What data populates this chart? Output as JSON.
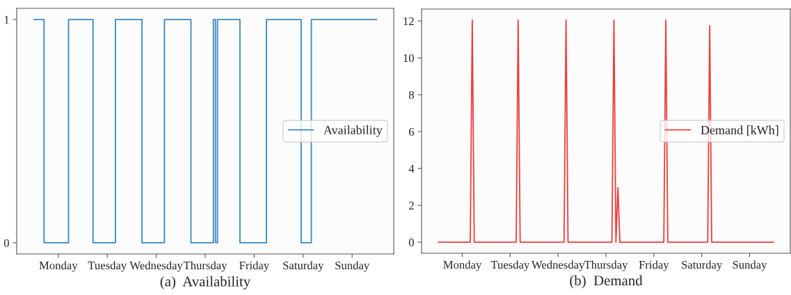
{
  "chart_data": [
    {
      "type": "step",
      "title": "(a)  Availability",
      "categories": [
        null,
        null,
        null,
        null,
        null,
        null,
        null,
        null,
        null,
        null,
        null,
        null,
        "Monday",
        null,
        null,
        null,
        null,
        null,
        null,
        null,
        null,
        null,
        null,
        null,
        null,
        null,
        null,
        null,
        null,
        null,
        null,
        null,
        null,
        null,
        null,
        null,
        "Tuesday",
        null,
        null,
        null,
        null,
        null,
        null,
        null,
        null,
        null,
        null,
        null,
        null,
        null,
        null,
        null,
        null,
        null,
        null,
        null,
        null,
        null,
        null,
        null,
        "Wednesday",
        null,
        null,
        null,
        null,
        null,
        null,
        null,
        null,
        null,
        null,
        null,
        null,
        null,
        null,
        null,
        null,
        null,
        null,
        null,
        null,
        null,
        null,
        null,
        "Thursday",
        null,
        null,
        null,
        null,
        null,
        null,
        null,
        null,
        null,
        null,
        null,
        null,
        null,
        null,
        null,
        null,
        null,
        null,
        null,
        null,
        null,
        null,
        null,
        "Friday",
        null,
        null,
        null,
        null,
        null,
        null,
        null,
        null,
        null,
        null,
        null,
        null,
        null,
        null,
        null,
        null,
        null,
        null,
        null,
        null,
        null,
        null,
        null,
        "Saturday",
        null,
        null,
        null,
        null,
        null,
        null,
        null,
        null,
        null,
        null,
        null,
        null,
        null,
        null,
        null,
        null,
        null,
        null,
        null,
        null,
        null,
        null,
        null,
        "Sunday",
        null,
        null,
        null,
        null,
        null,
        null,
        null,
        null,
        null,
        null,
        null,
        null
      ],
      "series": [
        {
          "name": "Availability",
          "color": "#3a87c0",
          "values": [
            1,
            1,
            1,
            1,
            1,
            0,
            0,
            0,
            0,
            0,
            0,
            0,
            0,
            0,
            0,
            0,
            0,
            1,
            1,
            1,
            1,
            1,
            1,
            1,
            1,
            1,
            1,
            1,
            1,
            0,
            0,
            0,
            0,
            0,
            0,
            0,
            0,
            0,
            0,
            0,
            1,
            1,
            1,
            1,
            1,
            1,
            1,
            1,
            1,
            1,
            1,
            1,
            1,
            0,
            0,
            0,
            0,
            0,
            0,
            0,
            0,
            0,
            0,
            0,
            1,
            1,
            1,
            1,
            1,
            1,
            1,
            1,
            1,
            1,
            1,
            1,
            1,
            0,
            0,
            0,
            0,
            0,
            0,
            0,
            0,
            0,
            0,
            0,
            1,
            0,
            1,
            1,
            1,
            1,
            1,
            1,
            1,
            1,
            1,
            1,
            1,
            0,
            0,
            0,
            0,
            0,
            0,
            0,
            0,
            0,
            0,
            0,
            0,
            0,
            1,
            1,
            1,
            1,
            1,
            1,
            1,
            1,
            1,
            1,
            1,
            1,
            1,
            1,
            1,
            1,
            1,
            0,
            0,
            0,
            0,
            0,
            1,
            1,
            1,
            1,
            1,
            1,
            1,
            1,
            1,
            1,
            1,
            1,
            1,
            1,
            1,
            1,
            1,
            1,
            1,
            1,
            1,
            1,
            1,
            1,
            1,
            1,
            1,
            1,
            1,
            1,
            1,
            1,
            1
          ]
        }
      ],
      "ylim": [
        -0.05,
        1.05
      ],
      "yticks": [
        0,
        1
      ],
      "grid": false,
      "legend": "center right"
    },
    {
      "type": "line",
      "title": "(b)  Demand",
      "categories": [
        null,
        null,
        null,
        null,
        null,
        null,
        null,
        null,
        null,
        null,
        null,
        null,
        "Monday",
        null,
        null,
        null,
        null,
        null,
        null,
        null,
        null,
        null,
        null,
        null,
        null,
        null,
        null,
        null,
        null,
        null,
        null,
        null,
        null,
        null,
        null,
        null,
        "Tuesday",
        null,
        null,
        null,
        null,
        null,
        null,
        null,
        null,
        null,
        null,
        null,
        null,
        null,
        null,
        null,
        null,
        null,
        null,
        null,
        null,
        null,
        null,
        null,
        "Wednesday",
        null,
        null,
        null,
        null,
        null,
        null,
        null,
        null,
        null,
        null,
        null,
        null,
        null,
        null,
        null,
        null,
        null,
        null,
        null,
        null,
        null,
        null,
        null,
        "Thursday",
        null,
        null,
        null,
        null,
        null,
        null,
        null,
        null,
        null,
        null,
        null,
        null,
        null,
        null,
        null,
        null,
        null,
        null,
        null,
        null,
        null,
        null,
        null,
        "Friday",
        null,
        null,
        null,
        null,
        null,
        null,
        null,
        null,
        null,
        null,
        null,
        null,
        null,
        null,
        null,
        null,
        null,
        null,
        null,
        null,
        null,
        null,
        null,
        "Saturday",
        null,
        null,
        null,
        null,
        null,
        null,
        null,
        null,
        null,
        null,
        null,
        null,
        null,
        null,
        null,
        null,
        null,
        null,
        null,
        null,
        null,
        null,
        null,
        "Sunday",
        null,
        null,
        null,
        null,
        null,
        null,
        null,
        null,
        null,
        null,
        null,
        null
      ],
      "series": [
        {
          "name": "Demand [kWh]",
          "color": "#f03c3c",
          "values": [
            0,
            0,
            0,
            0,
            0,
            0,
            0,
            0,
            0,
            0,
            0,
            0,
            0,
            0,
            0,
            0,
            0,
            12.05,
            0,
            0,
            0,
            0,
            0,
            0,
            0,
            0,
            0,
            0,
            0,
            0,
            0,
            0,
            0,
            0,
            0,
            0,
            0,
            0,
            0,
            0,
            12.05,
            0,
            0,
            0,
            0,
            0,
            0,
            0,
            0,
            0,
            0,
            0,
            0,
            0,
            0,
            0,
            0,
            0,
            0,
            0,
            0,
            0,
            0,
            0,
            12.05,
            0,
            0,
            0,
            0,
            0,
            0,
            0,
            0,
            0,
            0,
            0,
            0,
            0,
            0,
            0,
            0,
            0,
            0,
            0,
            0,
            0,
            0,
            0,
            12.05,
            0,
            2.95,
            0,
            0,
            0,
            0,
            0,
            0,
            0,
            0,
            0,
            0,
            0,
            0,
            0,
            0,
            0,
            0,
            0,
            0,
            0,
            0,
            0,
            0,
            0,
            12.05,
            0,
            0,
            0,
            0,
            0,
            0,
            0,
            0,
            0,
            0,
            0,
            0,
            0,
            0,
            0,
            0,
            0,
            0,
            0,
            0,
            0,
            11.75,
            0,
            0,
            0,
            0,
            0,
            0,
            0,
            0,
            0,
            0,
            0,
            0,
            0,
            0,
            0,
            0,
            0,
            0,
            0,
            0,
            0,
            0,
            0,
            0,
            0,
            0,
            0,
            0,
            0,
            0,
            0,
            0
          ]
        }
      ],
      "ylim": [
        -0.6,
        12.65
      ],
      "yticks": [
        0,
        2,
        4,
        6,
        8,
        10,
        12
      ],
      "grid": false,
      "legend": "center right"
    }
  ]
}
